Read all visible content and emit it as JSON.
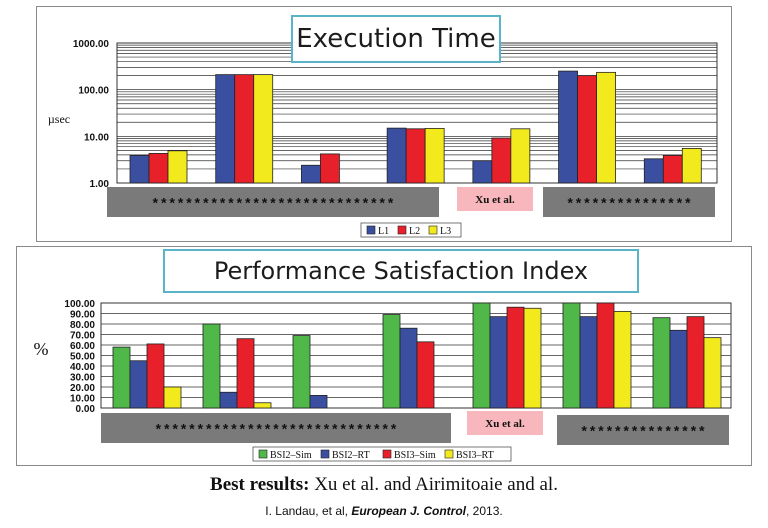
{
  "chart_data": [
    {
      "type": "bar",
      "title": "Execution Time",
      "ylabel": "µsec",
      "yscale": "log",
      "ylim": [
        1,
        1000
      ],
      "yticks": [
        "1.00",
        "10.00",
        "100.00",
        "1000.00"
      ],
      "categories": [
        "",
        "",
        "",
        "",
        "",
        "",
        ""
      ],
      "series": [
        {
          "name": "L1",
          "color": "#3b4fa0",
          "values": [
            3.9,
            210,
            2.4,
            15,
            3,
            250,
            3.3
          ]
        },
        {
          "name": "L2",
          "color": "#e8202a",
          "values": [
            4.3,
            210,
            4.2,
            14.5,
            9.2,
            200,
            3.9
          ]
        },
        {
          "name": "L3",
          "color": "#f2ea1c",
          "values": [
            4.9,
            210,
            null,
            14.8,
            14.5,
            235,
            5.5
          ]
        }
      ],
      "legend": "bottom-center",
      "grid": true,
      "annotations": {
        "group_a": "*****************************",
        "xu": "Xu et al.",
        "group_b": "***************"
      }
    },
    {
      "type": "bar",
      "title": "Performance Satisfaction Index",
      "ylabel": "%",
      "ylim": [
        0,
        100
      ],
      "yticks": [
        "0.00",
        "10.00",
        "20.00",
        "30.00",
        "40.00",
        "50.00",
        "60.00",
        "70.00",
        "80.00",
        "90.00",
        "100.00"
      ],
      "categories": [
        "",
        "",
        "",
        "",
        "",
        "",
        ""
      ],
      "series": [
        {
          "name": "BSI2–Sim",
          "color": "#4fb848",
          "values": [
            58,
            80,
            69,
            89,
            100,
            100,
            86
          ]
        },
        {
          "name": "BSI2–RT",
          "color": "#3b4fa0",
          "values": [
            45,
            15,
            12,
            76,
            87,
            87,
            74
          ]
        },
        {
          "name": "BSI3–Sim",
          "color": "#e8202a",
          "values": [
            61,
            66,
            null,
            63,
            96,
            100,
            87
          ]
        },
        {
          "name": "BSI3–RT",
          "color": "#f2ea1c",
          "values": [
            20,
            5,
            null,
            null,
            95,
            92,
            67
          ]
        }
      ],
      "legend": "bottom-center",
      "grid": true,
      "annotations": {
        "group_a": "*****************************",
        "xu": "Xu et al.",
        "group_b": "***************"
      }
    }
  ],
  "footer": {
    "bold": "Best results:",
    "rest": " Xu et al. and Airimitoaie and al."
  },
  "citation": {
    "pre": "I. Landau, et al, ",
    "journal": "European J. Control",
    "post": ", 2013."
  }
}
